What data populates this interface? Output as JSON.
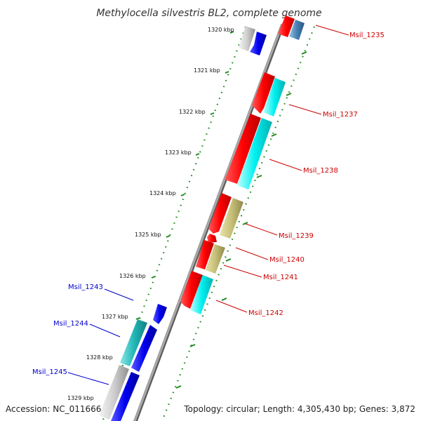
{
  "title": "Methylocella silvestris BL2, complete genome",
  "accession": "Accession: NC_011666",
  "summary": "Topology: circular; Length: 4,305,430 bp; Genes: 3,872",
  "colors": {
    "backbone": "#8a8a8a",
    "ruler_dots": "#1e8a1e",
    "forward_label": "#0000cc",
    "reverse_label": "#cc0000",
    "red_gene": "#ff0000",
    "blue_gene": "#0000ee",
    "cyan_gene": "#00e5e5",
    "teal_gene": "#1fb3b3",
    "khaki_gene": "#bdb76b",
    "gray_gene": "#c0c0c0",
    "steel_gene": "#4682b4"
  },
  "ruler_labels": [
    "1320 kbp",
    "1321 kbp",
    "1322 kbp",
    "1323 kbp",
    "1324 kbp",
    "1325 kbp",
    "1326 kbp",
    "1327 kbp",
    "1328 kbp",
    "1329 kbp"
  ],
  "gene_labels": {
    "reverse": [
      "Msil_1235",
      "Msil_1237",
      "Msil_1238",
      "Msil_1239",
      "Msil_1240",
      "Msil_1241",
      "Msil_1242"
    ],
    "forward": [
      "Msil_1243",
      "Msil_1244",
      "Msil_1245"
    ]
  }
}
